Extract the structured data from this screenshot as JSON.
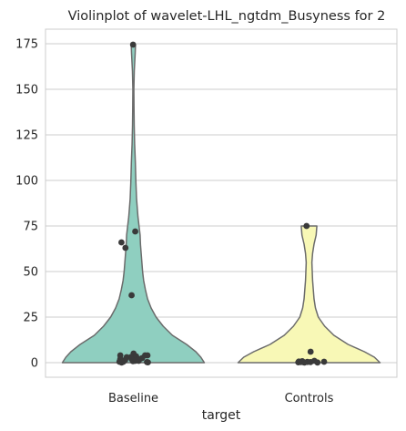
{
  "chart_data": {
    "type": "violin",
    "title": "Violinplot of wavelet-LHL_ngtdm_Busyness for 2",
    "xlabel": "target",
    "ylabel": "",
    "categories": [
      "Baseline",
      "Controls"
    ],
    "ylim": [
      -8,
      183
    ],
    "yticks": [
      0,
      25,
      50,
      75,
      100,
      125,
      150,
      175
    ],
    "ytick_labels": [
      "0",
      "25",
      "50",
      "75",
      "100",
      "125",
      "150",
      "175"
    ],
    "grid": true,
    "colors": {
      "Baseline": "#8fcfc0",
      "Controls": "#f8f8b6",
      "outline": "#6b6b6b",
      "points": "#3a3a3a"
    },
    "violins": [
      {
        "category": "Baseline",
        "range": [
          0,
          174.5
        ],
        "density": [
          [
            0,
            1.0
          ],
          [
            3,
            0.95
          ],
          [
            6,
            0.88
          ],
          [
            10,
            0.75
          ],
          [
            15,
            0.55
          ],
          [
            20,
            0.42
          ],
          [
            25,
            0.32
          ],
          [
            30,
            0.25
          ],
          [
            35,
            0.2
          ],
          [
            40,
            0.17
          ],
          [
            45,
            0.145
          ],
          [
            50,
            0.13
          ],
          [
            55,
            0.12
          ],
          [
            60,
            0.11
          ],
          [
            65,
            0.1
          ],
          [
            70,
            0.095
          ],
          [
            75,
            0.08
          ],
          [
            80,
            0.065
          ],
          [
            90,
            0.045
          ],
          [
            100,
            0.035
          ],
          [
            110,
            0.028
          ],
          [
            120,
            0.018
          ],
          [
            130,
            0.012
          ],
          [
            140,
            0.009
          ],
          [
            150,
            0.007
          ],
          [
            160,
            0.013
          ],
          [
            170,
            0.026
          ],
          [
            174.5,
            0.03
          ]
        ]
      },
      {
        "category": "Controls",
        "range": [
          0,
          75
        ],
        "density": [
          [
            0,
            1.0
          ],
          [
            3,
            0.92
          ],
          [
            6,
            0.78
          ],
          [
            10,
            0.55
          ],
          [
            15,
            0.35
          ],
          [
            20,
            0.22
          ],
          [
            25,
            0.13
          ],
          [
            30,
            0.09
          ],
          [
            35,
            0.07
          ],
          [
            40,
            0.06
          ],
          [
            45,
            0.05
          ],
          [
            50,
            0.045
          ],
          [
            55,
            0.04
          ],
          [
            60,
            0.05
          ],
          [
            65,
            0.07
          ],
          [
            70,
            0.1
          ],
          [
            75,
            0.11
          ]
        ]
      }
    ],
    "points": [
      {
        "category": "Baseline",
        "values": [
          174.5,
          72,
          66,
          63,
          37,
          5,
          4,
          4,
          3.5,
          3,
          3,
          2.5,
          2,
          2,
          1.5,
          1.5,
          1,
          1,
          1,
          0.8,
          0.5,
          0.5,
          0.3,
          0.2,
          0.1,
          2,
          4,
          1
        ]
      },
      {
        "category": "Controls",
        "values": [
          75,
          6,
          1,
          0.8,
          0.6,
          0.5,
          0.4,
          0.3,
          0.3,
          0.2,
          0.2,
          0.1,
          0.1
        ]
      }
    ]
  }
}
